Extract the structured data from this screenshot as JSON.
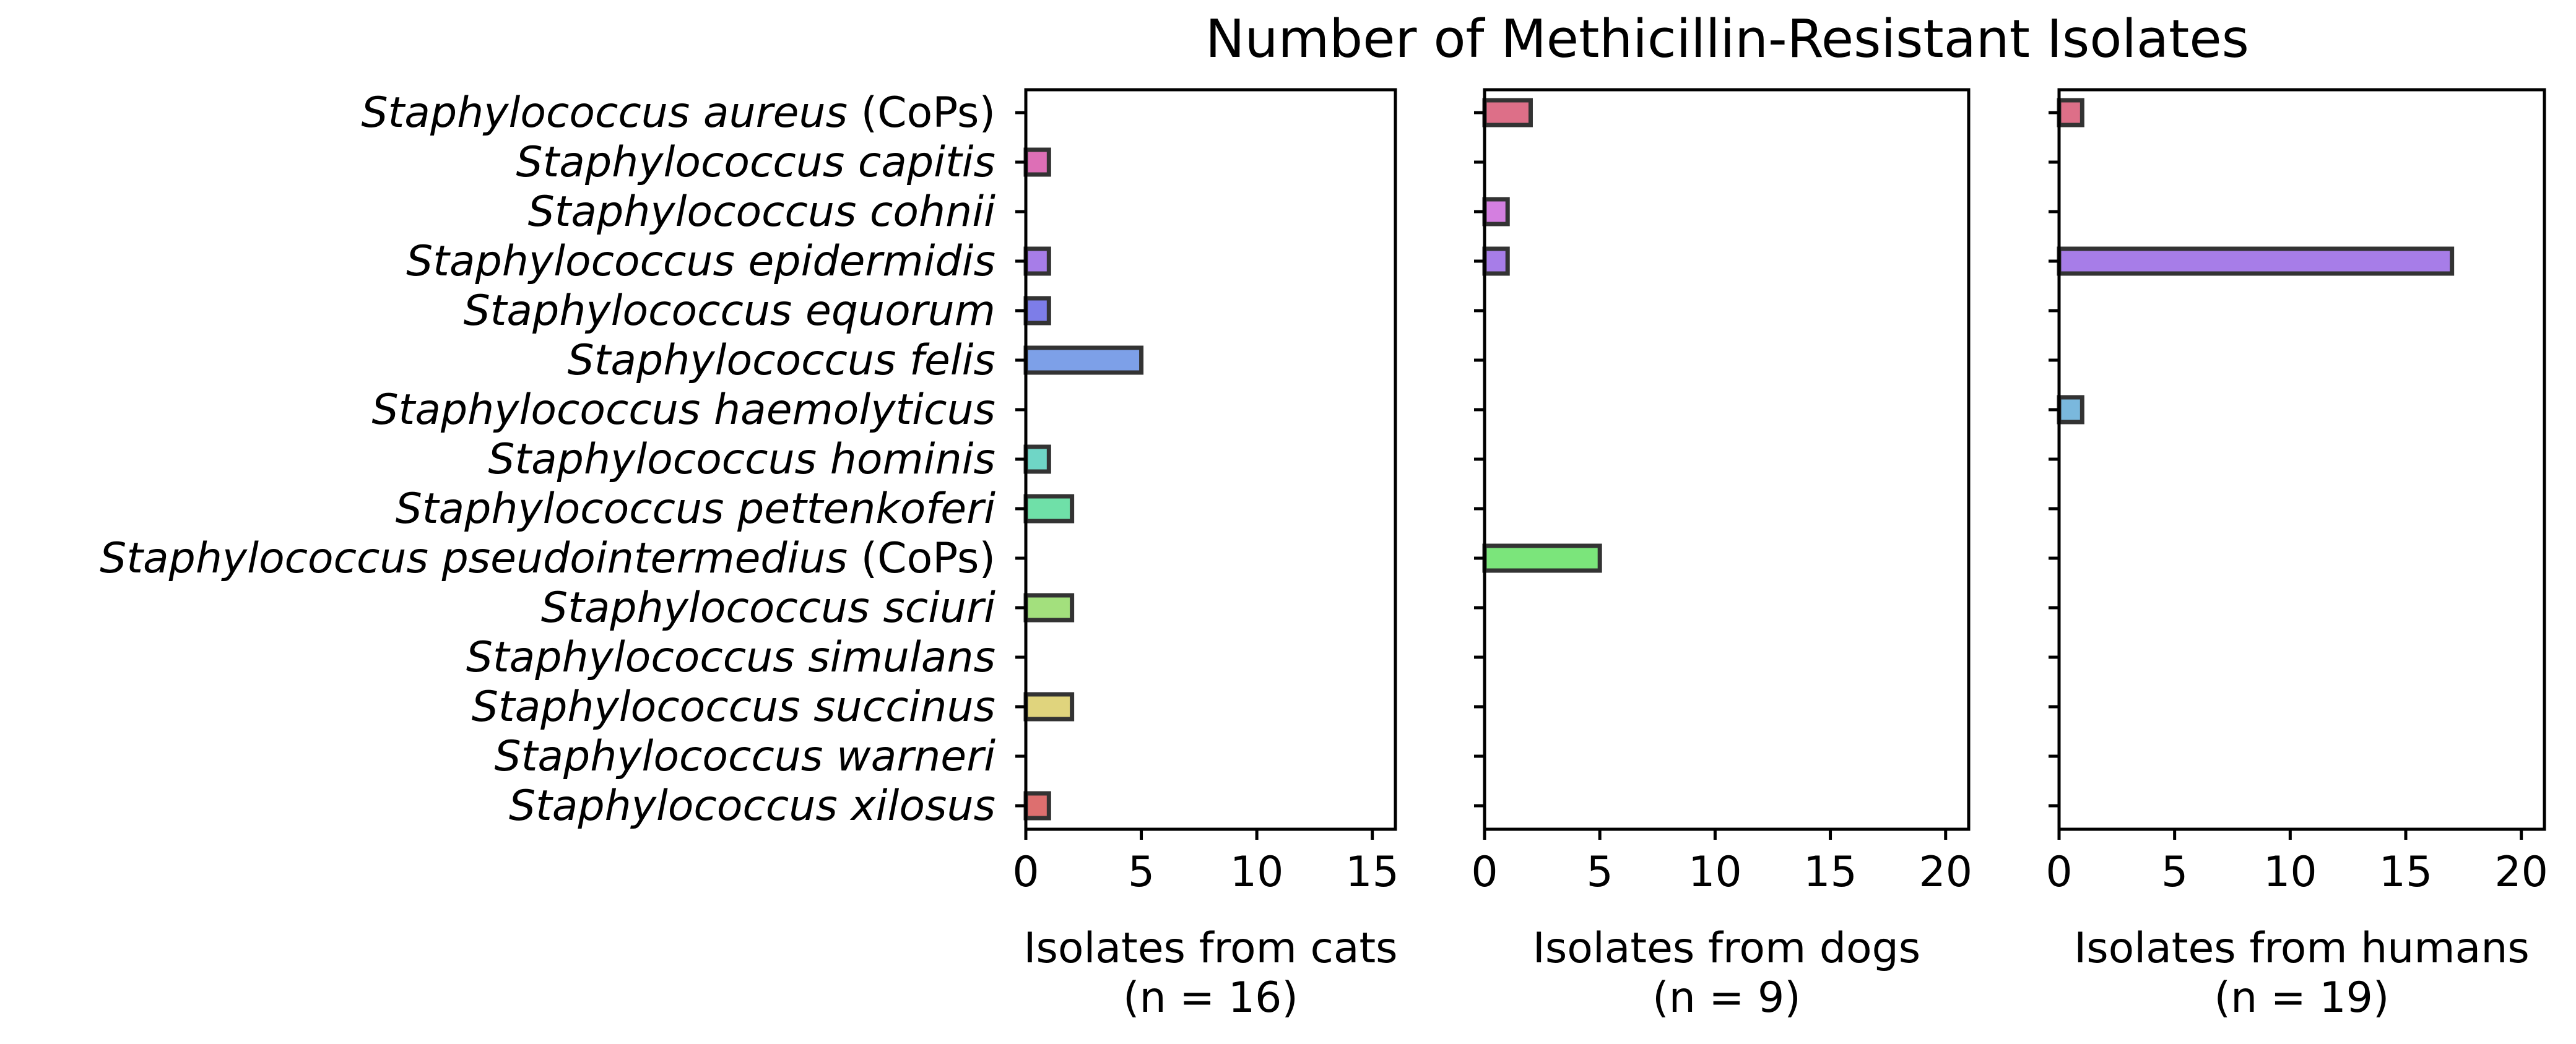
{
  "chart_data": {
    "type": "bar",
    "orientation": "horizontal",
    "title": "Number of Methicillin-Resistant Isolates",
    "categories": [
      {
        "genus": "Staphylococcus",
        "species": "aureus",
        "suffix": " (CoPs)"
      },
      {
        "genus": "Staphylococcus",
        "species": "capitis",
        "suffix": ""
      },
      {
        "genus": "Staphylococcus",
        "species": "cohnii",
        "suffix": ""
      },
      {
        "genus": "Staphylococcus",
        "species": "epidermidis",
        "suffix": ""
      },
      {
        "genus": "Staphylococcus",
        "species": "equorum",
        "suffix": ""
      },
      {
        "genus": "Staphylococcus",
        "species": "felis",
        "suffix": ""
      },
      {
        "genus": "Staphylococcus",
        "species": "haemolyticus",
        "suffix": ""
      },
      {
        "genus": "Staphylococcus",
        "species": "hominis",
        "suffix": ""
      },
      {
        "genus": "Staphylococcus",
        "species": "pettenkoferi",
        "suffix": ""
      },
      {
        "genus": "Staphylococcus",
        "species": "pseudointermedius",
        "suffix": " (CoPs)"
      },
      {
        "genus": "Staphylococcus",
        "species": "sciuri",
        "suffix": ""
      },
      {
        "genus": "Staphylococcus",
        "species": "simulans",
        "suffix": ""
      },
      {
        "genus": "Staphylococcus",
        "species": "succinus",
        "suffix": ""
      },
      {
        "genus": "Staphylococcus",
        "species": "warneri",
        "suffix": ""
      },
      {
        "genus": "Staphylococcus",
        "species": "xilosus",
        "suffix": ""
      }
    ],
    "colors": [
      "#dd6f88",
      "#dd6fb6",
      "#d47fe0",
      "#a77de8",
      "#7d7de8",
      "#7da0e8",
      "#7ab8dd",
      "#6fd6c6",
      "#6fe0a8",
      "#7be57b",
      "#a3e07d",
      "#cde07d",
      "#e0d47d",
      "#e0a87d",
      "#dd6f6f"
    ],
    "panels": [
      {
        "id": "cats",
        "xlabel_line1": "Isolates from cats",
        "xlabel_line2": "(n = 16)",
        "xlim": [
          0,
          16
        ],
        "xticks": [
          0,
          5,
          10,
          15
        ],
        "values": [
          0,
          1,
          0,
          1,
          1,
          5,
          0,
          1,
          2,
          0,
          2,
          0,
          2,
          0,
          1
        ]
      },
      {
        "id": "dogs",
        "xlabel_line1": "Isolates from dogs",
        "xlabel_line2": "(n = 9)",
        "xlim": [
          0,
          21
        ],
        "xticks": [
          0,
          5,
          10,
          15,
          20
        ],
        "values": [
          2,
          0,
          1,
          1,
          0,
          0,
          0,
          0,
          0,
          5,
          0,
          0,
          0,
          0,
          0
        ]
      },
      {
        "id": "humans",
        "xlabel_line1": "Isolates from humans",
        "xlabel_line2": "(n = 19)",
        "xlim": [
          0,
          21
        ],
        "xticks": [
          0,
          5,
          10,
          15,
          20
        ],
        "values": [
          1,
          0,
          0,
          17,
          0,
          0,
          1,
          0,
          0,
          0,
          0,
          0,
          0,
          0,
          0
        ]
      }
    ]
  }
}
